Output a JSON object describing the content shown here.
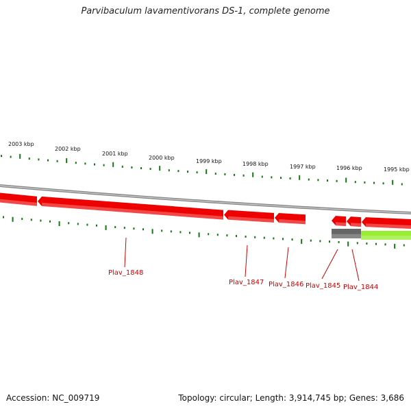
{
  "title": "Parvibaculum lavamentivorans DS-1, complete genome",
  "footer": {
    "accession": "Accession: NC_009719",
    "summary": "Topology: circular; Length: 3,914,745 bp; Genes: 3,686"
  },
  "colors": {
    "gene_red": "#ee0000",
    "gene_dark": "#666666",
    "gene_green": "#99ee33",
    "tick": "#117711",
    "backbone": "#888888",
    "label": "#cc0000"
  },
  "ruler_labels": [
    "2003 kbp",
    "2002 kbp",
    "2001 kbp",
    "2000 kbp",
    "1999 kbp",
    "1998 kbp",
    "1997 kbp",
    "1996 kbp",
    "1995 kbp"
  ],
  "genes": [
    {
      "label": "Plav_1848",
      "type": "CDS",
      "strand": "-"
    },
    {
      "label": "Plav_1847",
      "type": "CDS",
      "strand": "-"
    },
    {
      "label": "Plav_1846",
      "type": "CDS",
      "strand": "-"
    },
    {
      "label": "Plav_1845",
      "type": "CDS",
      "strand": "-"
    },
    {
      "label": "Plav_1844",
      "type": "CDS",
      "strand": "-"
    }
  ]
}
